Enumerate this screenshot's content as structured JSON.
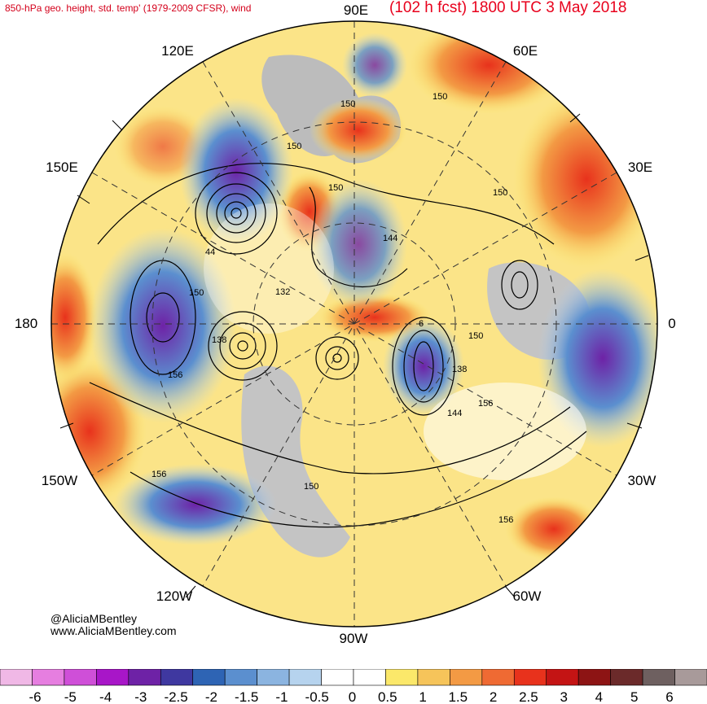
{
  "title_left": "850-hPa geo. height, std. temp' (1979-2009 CFSR), wind",
  "title_right": "(102 h fcst) 1800 UTC 3 May 2018",
  "longitude_labels": {
    "lon_90e": "90E",
    "lon_60e": "60E",
    "lon_30e": "30E",
    "lon_0": "0",
    "lon_30w": "30W",
    "lon_60w": "60W",
    "lon_90w": "90W",
    "lon_120w": "120W",
    "lon_150w": "150W",
    "lon_180": "180",
    "lon_150e": "150E",
    "lon_120e": "120E"
  },
  "contour_labels": [
    {
      "id": "c1",
      "text": "150"
    },
    {
      "id": "c2",
      "text": "150"
    },
    {
      "id": "c3",
      "text": "150"
    },
    {
      "id": "c4",
      "text": "150"
    },
    {
      "id": "c5",
      "text": "150"
    },
    {
      "id": "c6",
      "text": "144"
    },
    {
      "id": "c7",
      "text": "44"
    },
    {
      "id": "c8",
      "text": "150"
    },
    {
      "id": "c9",
      "text": "132"
    },
    {
      "id": "c10",
      "text": "138"
    },
    {
      "id": "c11",
      "text": "6"
    },
    {
      "id": "c12",
      "text": "150"
    },
    {
      "id": "c13",
      "text": "138"
    },
    {
      "id": "c14",
      "text": "156"
    },
    {
      "id": "c15",
      "text": "156"
    },
    {
      "id": "c16",
      "text": "144"
    },
    {
      "id": "c17",
      "text": "156"
    },
    {
      "id": "c18",
      "text": "150"
    },
    {
      "id": "c19",
      "text": "156"
    }
  ],
  "credits": {
    "line1": "@AliciaMBentley",
    "line2": "www.AliciaMBentley.com"
  },
  "colorbar": {
    "colors": [
      "#f0b8e6",
      "#e67ee0",
      "#cf4fd8",
      "#a816c8",
      "#6e22a6",
      "#3f38a0",
      "#2e64b4",
      "#5b8fcf",
      "#8bb4e0",
      "#b6d3ee",
      "#ffffff",
      "#ffffff",
      "#fbe86a",
      "#f6c45a",
      "#f39a44",
      "#ef6a33",
      "#e8321c",
      "#c41414",
      "#8d1414",
      "#6b2a2a",
      "#6e6060",
      "#a89a9a"
    ],
    "labels": [
      "-6",
      "-5",
      "-4",
      "-3",
      "-2.5",
      "-2",
      "-1.5",
      "-1",
      "-0.5",
      "0",
      "0.5",
      "1",
      "1.5",
      "2",
      "2.5",
      "3",
      "4",
      "5",
      "6"
    ]
  },
  "legend_colors": {
    "warm": "#ef6a33",
    "cold": "#3f38a0",
    "land": "#bcbcbc"
  }
}
